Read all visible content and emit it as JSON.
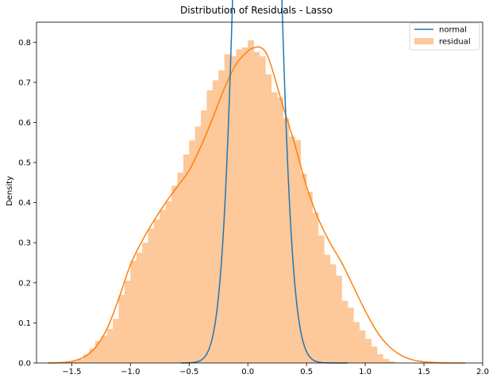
{
  "chart_data": {
    "type": "bar",
    "title": "Distribution of Residuals - Lasso",
    "xlabel": "",
    "ylabel": "Density",
    "xlim": [
      -1.8,
      2.0
    ],
    "ylim": [
      0,
      0.85
    ],
    "xticks": [
      -1.5,
      -1.0,
      -0.5,
      0.0,
      0.5,
      1.0,
      1.5,
      2.0
    ],
    "xtick_labels": [
      "−1.5",
      "−1.0",
      "−0.5",
      "0.0",
      "0.5",
      "1.0",
      "1.5",
      "2.0"
    ],
    "yticks": [
      0.0,
      0.1,
      0.2,
      0.3,
      0.4,
      0.5,
      0.6,
      0.7,
      0.8
    ],
    "ytick_labels": [
      "0.0",
      "0.1",
      "0.2",
      "0.3",
      "0.4",
      "0.5",
      "0.6",
      "0.7",
      "0.8"
    ],
    "grid": false,
    "legend_position": "top-right",
    "histogram": {
      "name": "residual",
      "color": "#fdc89a",
      "bin_start": -1.55,
      "bin_width": 0.05,
      "values": [
        0.002,
        0.004,
        0.009,
        0.021,
        0.036,
        0.055,
        0.068,
        0.085,
        0.11,
        0.17,
        0.205,
        0.255,
        0.275,
        0.3,
        0.335,
        0.358,
        0.382,
        0.403,
        0.442,
        0.475,
        0.52,
        0.555,
        0.59,
        0.63,
        0.68,
        0.705,
        0.73,
        0.77,
        0.765,
        0.782,
        0.787,
        0.805,
        0.776,
        0.765,
        0.72,
        0.675,
        0.662,
        0.61,
        0.565,
        0.556,
        0.472,
        0.427,
        0.375,
        0.318,
        0.27,
        0.246,
        0.218,
        0.155,
        0.138,
        0.102,
        0.081,
        0.06,
        0.041,
        0.022,
        0.01,
        0.004,
        0.001
      ]
    },
    "kde": {
      "name": "",
      "color": "#ff7f0e",
      "x": [
        -1.7,
        -1.6,
        -1.5,
        -1.4,
        -1.3,
        -1.2,
        -1.1,
        -1.0,
        -0.9,
        -0.8,
        -0.7,
        -0.6,
        -0.5,
        -0.4,
        -0.3,
        -0.2,
        -0.1,
        0.0,
        0.05,
        0.1,
        0.15,
        0.2,
        0.3,
        0.4,
        0.5,
        0.6,
        0.7,
        0.8,
        0.9,
        1.0,
        1.1,
        1.2,
        1.3,
        1.4,
        1.5,
        1.6,
        1.7,
        1.85
      ],
      "y": [
        0.0,
        0.001,
        0.004,
        0.014,
        0.038,
        0.085,
        0.16,
        0.245,
        0.305,
        0.355,
        0.4,
        0.44,
        0.48,
        0.54,
        0.61,
        0.685,
        0.745,
        0.778,
        0.786,
        0.788,
        0.776,
        0.74,
        0.64,
        0.545,
        0.44,
        0.36,
        0.3,
        0.25,
        0.19,
        0.13,
        0.078,
        0.042,
        0.02,
        0.008,
        0.003,
        0.001,
        0.0,
        0.0
      ]
    },
    "series": [
      {
        "name": "normal",
        "color": "#1f77b4",
        "mean": 0.08,
        "std": 0.138,
        "x_min": -0.57,
        "x_max": 0.85
      }
    ],
    "legend": [
      {
        "label": "normal",
        "kind": "line",
        "color": "#1f77b4"
      },
      {
        "label": "residual",
        "kind": "patch",
        "color": "#fdc89a"
      }
    ]
  }
}
